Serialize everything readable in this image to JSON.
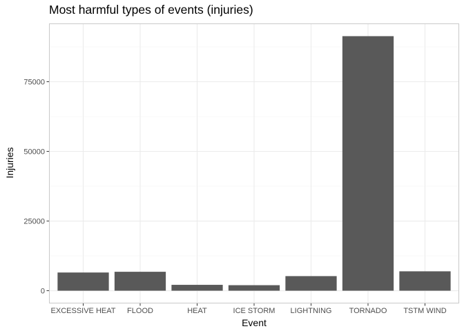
{
  "chart_data": {
    "type": "bar",
    "title": "Most harmful types of events (injuries)",
    "xlabel": "Event",
    "ylabel": "Injuries",
    "categories": [
      "EXCESSIVE HEAT",
      "FLOOD",
      "HEAT",
      "ICE STORM",
      "LIGHTNING",
      "TORNADO",
      "TSTM WIND"
    ],
    "values": [
      6525,
      6789,
      2100,
      1975,
      5230,
      91346,
      6957
    ],
    "ylim": [
      -4568,
      95914
    ],
    "yticks": [
      0,
      25000,
      50000,
      75000
    ],
    "ytick_labels": [
      "0",
      "25000",
      "50000",
      "75000"
    ],
    "grid": true,
    "legend": "none",
    "bar_color": "#595959",
    "grid_major_color": "#ebebeb",
    "grid_minor_color": "#f5f5f5",
    "panel_border_color": "#c9c9c9"
  }
}
